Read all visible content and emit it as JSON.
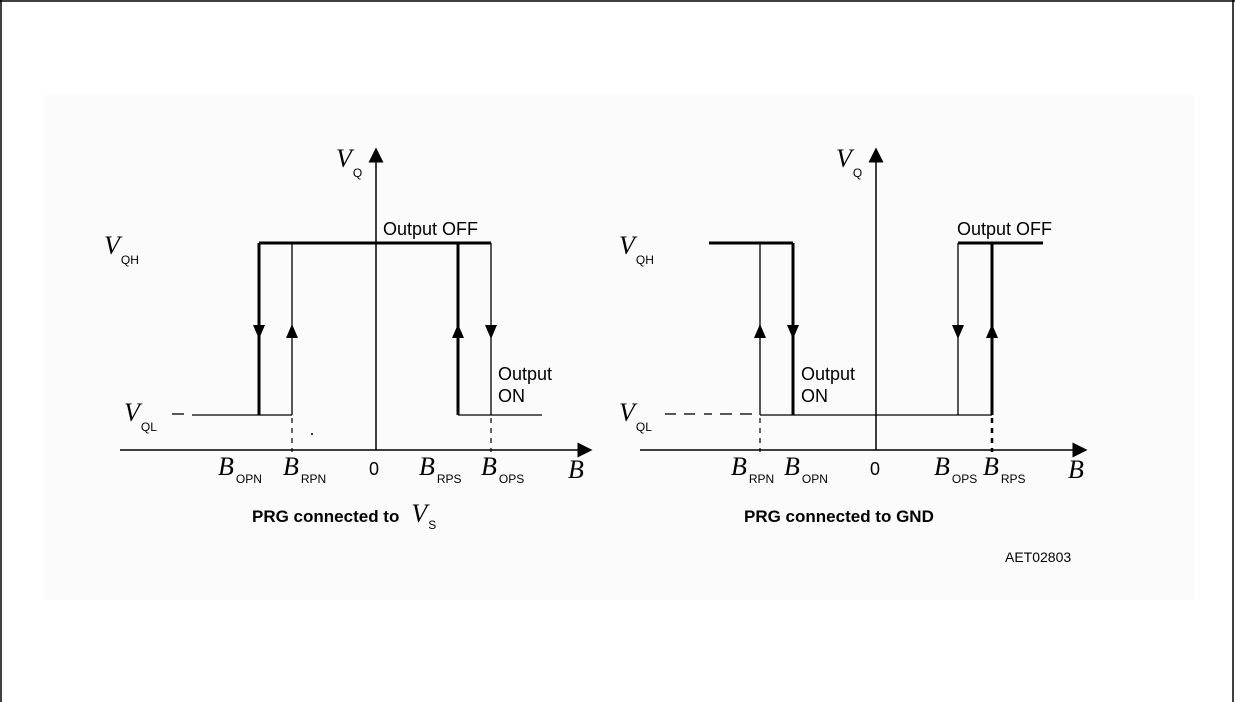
{
  "left": {
    "v_axis": "V",
    "v_axis_sub": "Q",
    "vqh": "V",
    "vqh_sub": "QH",
    "vql": "V",
    "vql_sub": "QL",
    "output_off": "Output OFF",
    "output_on_1": "Output",
    "output_on_2": "ON",
    "b_axis": "B",
    "zero": "0",
    "b1": "B",
    "b1_sub": "OPN",
    "b2": "B",
    "b2_sub": "RPN",
    "b3": "B",
    "b3_sub": "RPS",
    "b4": "B",
    "b4_sub": "OPS",
    "caption": "PRG connected to",
    "caption_sym": "V",
    "caption_sym_sub": "S"
  },
  "right": {
    "v_axis": "V",
    "v_axis_sub": "Q",
    "vqh": "V",
    "vqh_sub": "QH",
    "vql": "V",
    "vql_sub": "QL",
    "output_off": "Output OFF",
    "output_on_1": "Output",
    "output_on_2": "ON",
    "b_axis": "B",
    "zero": "0",
    "b1": "B",
    "b1_sub": "RPN",
    "b2": "B",
    "b2_sub": "OPN",
    "b3": "B",
    "b3_sub": "OPS",
    "b4": "B",
    "b4_sub": "RPS",
    "caption": "PRG connected to GND"
  },
  "figure_code": "AET02803"
}
